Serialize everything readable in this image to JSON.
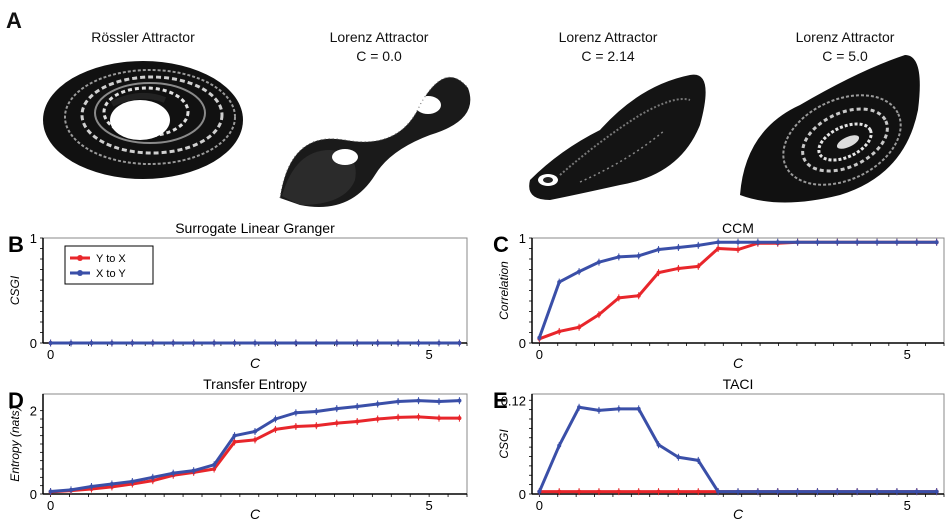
{
  "panel_a": {
    "letter": "A",
    "attractors": [
      {
        "title": "Rössler Attractor",
        "subtitle": ""
      },
      {
        "title": "Lorenz Attractor",
        "subtitle": "C = 0.0"
      },
      {
        "title": "Lorenz Attractor",
        "subtitle": "C = 2.14"
      },
      {
        "title": "Lorenz Attractor",
        "subtitle": "C = 5.0"
      }
    ]
  },
  "colors": {
    "y_to_x": "#e8262b",
    "x_to_y": "#3a4fa8"
  },
  "chart_data": [
    {
      "id": "B",
      "letter": "B",
      "type": "line",
      "title": "Surrogate Linear Granger",
      "xlabel": "C",
      "ylabel": "CSGI",
      "xlim": [
        -0.1,
        5.5
      ],
      "ylim": [
        0,
        1
      ],
      "xticks": [
        0,
        5
      ],
      "yticks": [
        0,
        1
      ],
      "yticklabels": [
        "0",
        "1"
      ],
      "legend": {
        "placement": "top-left",
        "entries": [
          "Y to X",
          "X to Y"
        ]
      },
      "x": [
        0,
        0.27,
        0.54,
        0.81,
        1.08,
        1.35,
        1.62,
        1.89,
        2.16,
        2.43,
        2.7,
        2.97,
        3.24,
        3.51,
        3.78,
        4.05,
        4.32,
        4.59,
        4.86,
        5.13,
        5.4
      ],
      "series": [
        {
          "name": "Y to X",
          "values": [
            0,
            0,
            0,
            0,
            0,
            0,
            0,
            0,
            0,
            0,
            0,
            0,
            0,
            0,
            0,
            0,
            0,
            0,
            0,
            0,
            0
          ]
        },
        {
          "name": "X to Y",
          "values": [
            0,
            0,
            0,
            0,
            0,
            0,
            0,
            0,
            0,
            0,
            0,
            0,
            0,
            0,
            0,
            0,
            0,
            0,
            0,
            0,
            0
          ]
        }
      ]
    },
    {
      "id": "C",
      "letter": "C",
      "type": "line",
      "title": "CCM",
      "xlabel": "C",
      "ylabel": "Correlation",
      "xlim": [
        -0.1,
        5.5
      ],
      "ylim": [
        0,
        1
      ],
      "xticks": [
        0,
        5
      ],
      "yticks": [
        0,
        1
      ],
      "yticklabels": [
        "0",
        "1"
      ],
      "x": [
        0,
        0.27,
        0.54,
        0.81,
        1.08,
        1.35,
        1.62,
        1.89,
        2.16,
        2.43,
        2.7,
        2.97,
        3.24,
        3.51,
        3.78,
        4.05,
        4.32,
        4.59,
        4.86,
        5.13,
        5.4
      ],
      "series": [
        {
          "name": "Y to X",
          "values": [
            0.04,
            0.11,
            0.15,
            0.27,
            0.43,
            0.45,
            0.67,
            0.71,
            0.73,
            0.9,
            0.89,
            0.95,
            0.95,
            0.96,
            0.96,
            0.96,
            0.96,
            0.96,
            0.96,
            0.96,
            0.96
          ]
        },
        {
          "name": "X to Y",
          "values": [
            0.05,
            0.58,
            0.68,
            0.77,
            0.82,
            0.83,
            0.89,
            0.91,
            0.93,
            0.96,
            0.96,
            0.96,
            0.96,
            0.96,
            0.96,
            0.96,
            0.96,
            0.96,
            0.96,
            0.96,
            0.96
          ]
        }
      ]
    },
    {
      "id": "D",
      "letter": "D",
      "type": "line",
      "title": "Transfer Entropy",
      "xlabel": "C",
      "ylabel": "Entropy (nats)",
      "xlim": [
        -0.1,
        5.5
      ],
      "ylim": [
        0,
        2.4
      ],
      "xticks": [
        0,
        5
      ],
      "yticks": [
        0,
        2
      ],
      "yticklabels": [
        "0",
        "2"
      ],
      "x": [
        0,
        0.27,
        0.54,
        0.81,
        1.08,
        1.35,
        1.62,
        1.89,
        2.16,
        2.43,
        2.7,
        2.97,
        3.24,
        3.51,
        3.78,
        4.05,
        4.32,
        4.59,
        4.86,
        5.13,
        5.4
      ],
      "series": [
        {
          "name": "Y to X",
          "values": [
            0.05,
            0.08,
            0.12,
            0.17,
            0.24,
            0.32,
            0.45,
            0.52,
            0.6,
            1.25,
            1.3,
            1.55,
            1.62,
            1.64,
            1.7,
            1.74,
            1.8,
            1.84,
            1.85,
            1.82,
            1.82
          ]
        },
        {
          "name": "X to Y",
          "values": [
            0.06,
            0.1,
            0.18,
            0.24,
            0.3,
            0.4,
            0.5,
            0.56,
            0.7,
            1.4,
            1.5,
            1.8,
            1.95,
            1.98,
            2.05,
            2.1,
            2.16,
            2.22,
            2.24,
            2.22,
            2.24
          ]
        }
      ]
    },
    {
      "id": "E",
      "letter": "E",
      "type": "line",
      "title": "TACI",
      "xlabel": "C",
      "ylabel": "CSGI",
      "xlim": [
        -0.1,
        5.5
      ],
      "ylim": [
        0,
        0.128
      ],
      "xticks": [
        0,
        5
      ],
      "yticks": [
        0,
        0.12
      ],
      "yticklabels": [
        "0",
        "0.12"
      ],
      "x": [
        0,
        0.27,
        0.54,
        0.81,
        1.08,
        1.35,
        1.62,
        1.89,
        2.16,
        2.43,
        2.7,
        2.97,
        3.24,
        3.51,
        3.78,
        4.05,
        4.32,
        4.59,
        4.86,
        5.13,
        5.4
      ],
      "series": [
        {
          "name": "Y to X",
          "values": [
            0.003,
            0.003,
            0.003,
            0.003,
            0.003,
            0.003,
            0.003,
            0.003,
            0.003,
            0.003,
            0.003,
            0.003,
            0.003,
            0.003,
            0.003,
            0.003,
            0.003,
            0.003,
            0.003,
            0.003,
            0.003
          ]
        },
        {
          "name": "X to Y",
          "values": [
            0.003,
            0.062,
            0.111,
            0.107,
            0.109,
            0.109,
            0.063,
            0.047,
            0.043,
            0.003,
            0.003,
            0.003,
            0.003,
            0.003,
            0.003,
            0.003,
            0.003,
            0.003,
            0.003,
            0.003,
            0.003
          ]
        }
      ]
    }
  ]
}
